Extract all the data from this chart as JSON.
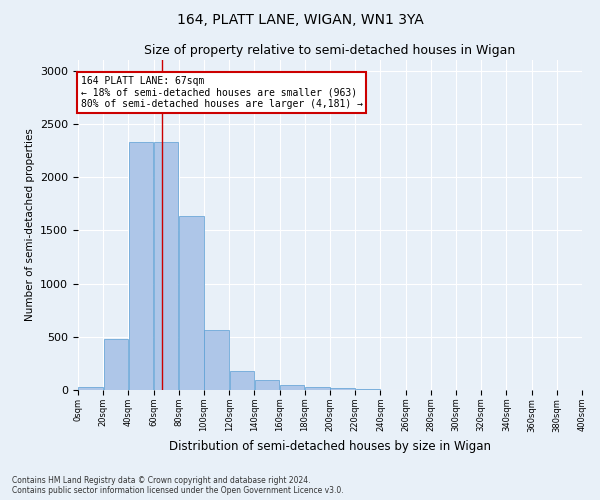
{
  "title": "164, PLATT LANE, WIGAN, WN1 3YA",
  "subtitle": "Size of property relative to semi-detached houses in Wigan",
  "xlabel": "Distribution of semi-detached houses by size in Wigan",
  "ylabel": "Number of semi-detached properties",
  "bins": [
    0,
    20,
    40,
    60,
    80,
    100,
    120,
    140,
    160,
    180,
    200,
    220,
    240,
    260,
    280,
    300,
    320,
    340,
    360,
    380,
    400
  ],
  "counts": [
    25,
    480,
    2330,
    2330,
    1630,
    565,
    175,
    90,
    50,
    30,
    15,
    5,
    2,
    1,
    0,
    0,
    0,
    0,
    0,
    0
  ],
  "bar_color": "#aec6e8",
  "bar_edgecolor": "#5a9fd4",
  "property_size": 67,
  "annotation_title": "164 PLATT LANE: 67sqm",
  "annotation_line1": "← 18% of semi-detached houses are smaller (963)",
  "annotation_line2": "80% of semi-detached houses are larger (4,181) →",
  "annotation_box_color": "#ffffff",
  "annotation_box_edgecolor": "#cc0000",
  "vline_color": "#cc0000",
  "ylim": [
    0,
    3100
  ],
  "footer_line1": "Contains HM Land Registry data © Crown copyright and database right 2024.",
  "footer_line2": "Contains public sector information licensed under the Open Government Licence v3.0.",
  "bg_color": "#e8f0f8",
  "plot_bg_color": "#e8f0f8",
  "grid_color": "#ffffff"
}
